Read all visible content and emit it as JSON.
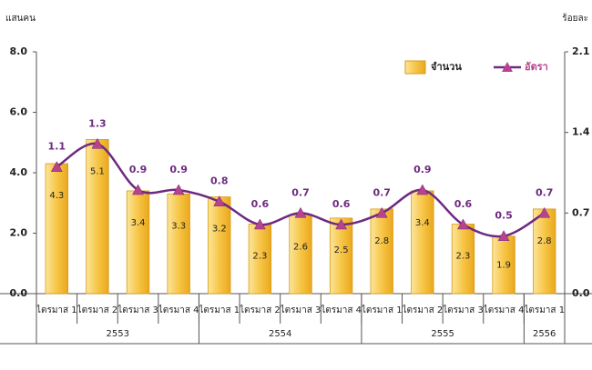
{
  "chart_data": {
    "type": "bar_line",
    "y_label": "แสนคน",
    "y2_label": "ร้อยละ",
    "groups": [
      {
        "label": "2553",
        "categories": [
          "ไตรมาส 1",
          "ไตรมาส 2",
          "ไตรมาส 3",
          "ไตรมาส 4"
        ]
      },
      {
        "label": "2554",
        "categories": [
          "ไตรมาส 1",
          "ไตรมาส 2",
          "ไตรมาส 3",
          "ไตรมาส 4"
        ]
      },
      {
        "label": "2555",
        "categories": [
          "ไตรมาส 1",
          "ไตรมาส 2",
          "ไตรมาส 3",
          "ไตรมาส 4"
        ]
      },
      {
        "label": "2556",
        "categories": [
          "ไตรมาส 1"
        ]
      }
    ],
    "series": [
      {
        "name": "จำนวน",
        "type": "bar",
        "color": "#f7c648",
        "values": [
          4.3,
          5.1,
          3.4,
          3.3,
          3.2,
          2.3,
          2.6,
          2.5,
          2.8,
          3.4,
          2.3,
          1.9,
          2.8
        ]
      },
      {
        "name": "อัตรา",
        "type": "line",
        "axis": "y2",
        "color": "#6e2a80",
        "marker_color": "#b8428e",
        "values": [
          1.1,
          1.3,
          0.9,
          0.9,
          0.8,
          0.6,
          0.7,
          0.6,
          0.7,
          0.9,
          0.6,
          0.5,
          0.7
        ]
      }
    ],
    "ylim": [
      0,
      8
    ],
    "yticks": [
      {
        "value": 0,
        "label": "0.0"
      },
      {
        "value": 2,
        "label": "2.0"
      },
      {
        "value": 4,
        "label": "4.0"
      },
      {
        "value": 6,
        "label": "6.0"
      },
      {
        "value": 8,
        "label": "8.0"
      }
    ],
    "y2lim": [
      0,
      2.1
    ],
    "y2ticks": [
      {
        "value": 0,
        "label": "0.0"
      },
      0.7,
      1.4,
      2.1
    ],
    "grid": false,
    "legend": "top-right"
  }
}
